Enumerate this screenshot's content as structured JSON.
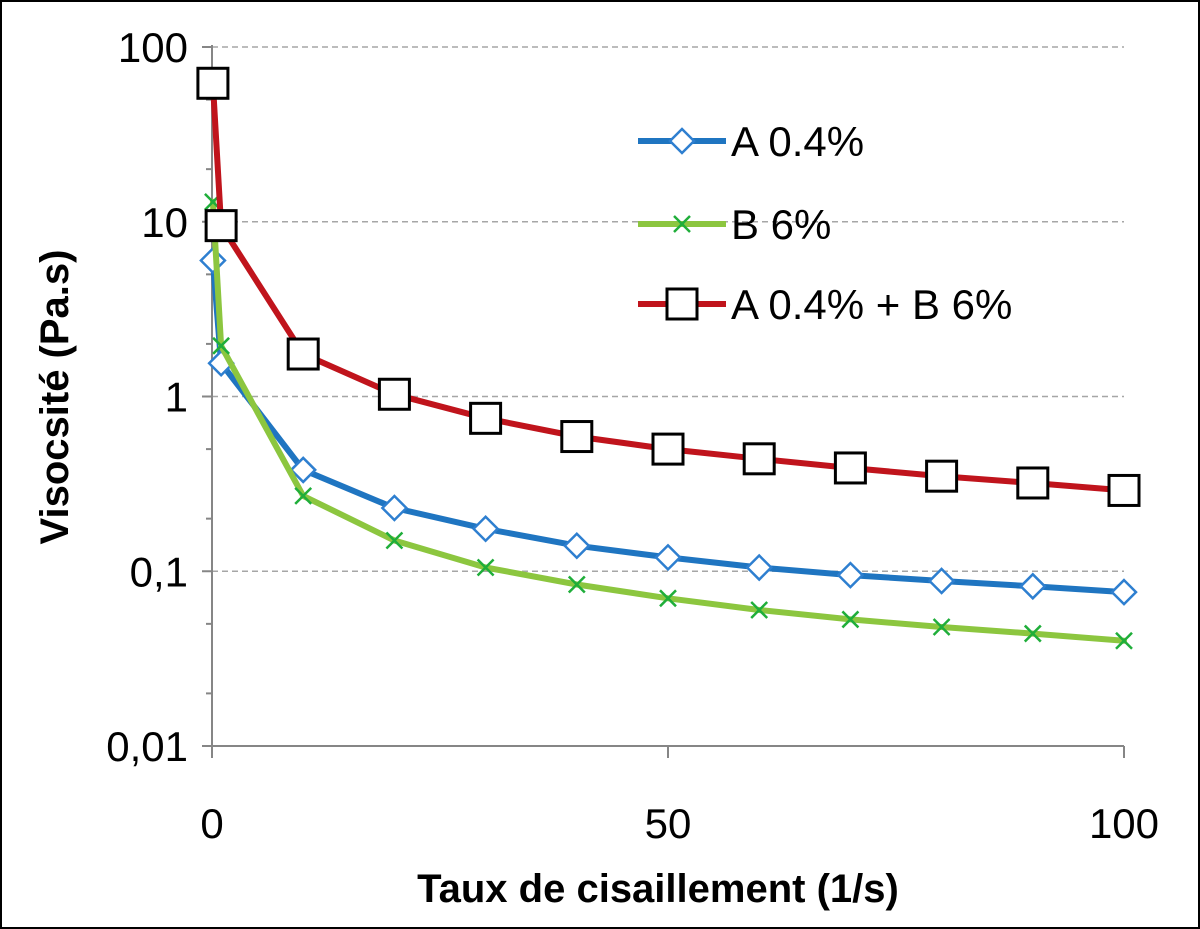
{
  "chart_data": {
    "type": "line",
    "title": "",
    "xlabel": "Taux de cisaillement (1/s)",
    "ylabel": "Visocsité (Pa.s)",
    "xlim": [
      0,
      100
    ],
    "ylim": [
      0.01,
      100
    ],
    "yscale": "log",
    "xticks": [
      0,
      50,
      100
    ],
    "xtick_labels": [
      "0",
      "50",
      "100"
    ],
    "yticks": [
      0.01,
      0.1,
      1,
      10,
      100
    ],
    "ytick_labels": [
      "0,01",
      "0,1",
      "1",
      "10",
      "100"
    ],
    "grid": "horizontal-major",
    "legend_position": "top-right",
    "series": [
      {
        "name": "A 0.4%",
        "color": "#1F75C1",
        "marker": "diamond",
        "marker_color": "#2E7FD0",
        "x": [
          0.1,
          1,
          10,
          20,
          30,
          40,
          50,
          60,
          70,
          80,
          90,
          100
        ],
        "y": [
          6,
          1.55,
          0.38,
          0.23,
          0.175,
          0.14,
          0.12,
          0.105,
          0.095,
          0.088,
          0.082,
          0.076
        ]
      },
      {
        "name": "B 6%",
        "color": "#8CC63F",
        "marker": "x",
        "marker_color": "#1FAE3A",
        "x": [
          0.1,
          1,
          10,
          20,
          30,
          40,
          50,
          60,
          70,
          80,
          90,
          100
        ],
        "y": [
          13,
          1.95,
          0.27,
          0.15,
          0.105,
          0.084,
          0.07,
          0.06,
          0.053,
          0.048,
          0.044,
          0.04
        ]
      },
      {
        "name": "A 0.4% + B 6%",
        "color": "#C0141C",
        "marker": "square",
        "marker_color": "#000000",
        "x": [
          0.1,
          1,
          10,
          20,
          30,
          40,
          50,
          60,
          70,
          80,
          90,
          100
        ],
        "y": [
          62,
          9.5,
          1.75,
          1.03,
          0.75,
          0.59,
          0.5,
          0.44,
          0.39,
          0.35,
          0.32,
          0.29
        ]
      }
    ]
  }
}
